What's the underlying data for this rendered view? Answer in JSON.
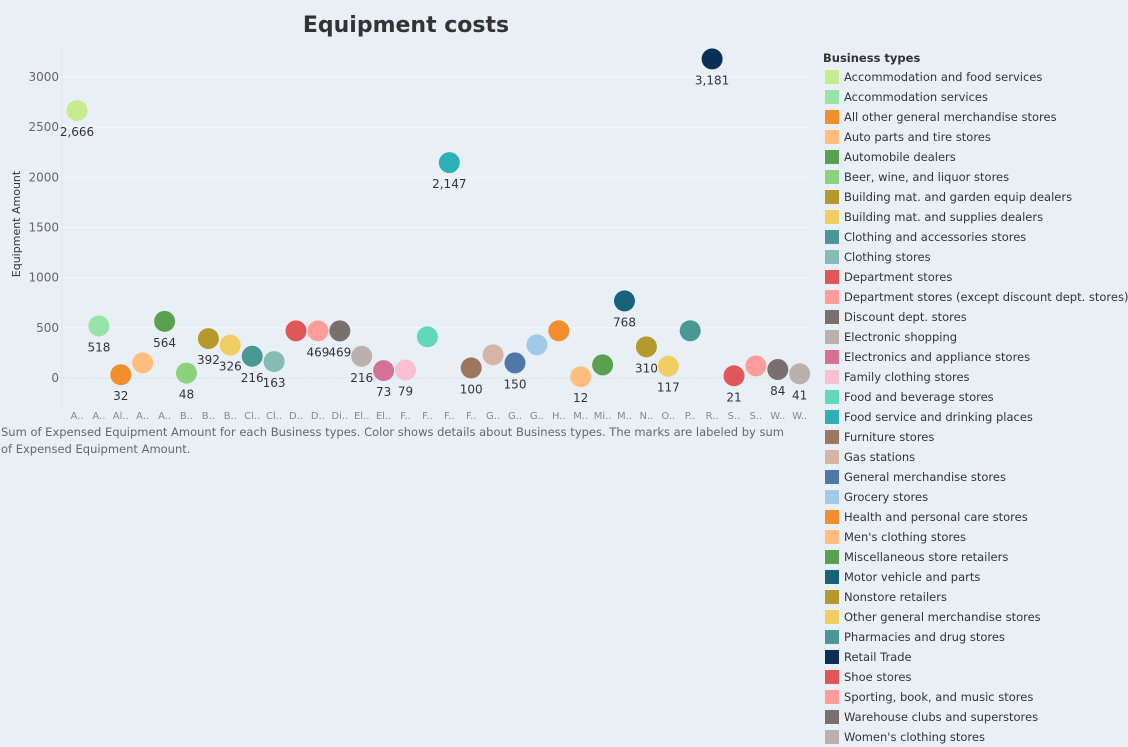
{
  "chart_data": {
    "type": "scatter",
    "title": "Equipment costs",
    "ylabel": "Equipment Amount",
    "xlabel": "",
    "ylim": [
      -300,
      3300
    ],
    "yticks": [
      0,
      500,
      1000,
      1500,
      2000,
      2500,
      3000
    ],
    "grid": true,
    "legend_title": "Business types",
    "legend_position": "right",
    "caption": "Sum of Expensed Equipment Amount for each Business types.  Color shows details about Business types.  The marks are labeled by sum of Expensed Equipment Amount.",
    "points": [
      {
        "category": "Accommodation and food services",
        "tick": "A..",
        "value": 2666,
        "label": "2,666",
        "color": "#c6ec8e"
      },
      {
        "category": "Accommodation services",
        "tick": "A..",
        "value": 518,
        "label": "518",
        "color": "#98e3a6"
      },
      {
        "category": "All other general merchandise stores",
        "tick": "Al..",
        "value": 32,
        "label": "32",
        "color": "#f28e2b"
      },
      {
        "category": "Auto parts and tire stores",
        "tick": "A..",
        "value": 150,
        "label": "",
        "color": "#ffbe7d"
      },
      {
        "category": "Automobile dealers",
        "tick": "A..",
        "value": 564,
        "label": "564",
        "color": "#59a14f"
      },
      {
        "category": "Beer, wine, and liquor stores",
        "tick": "B..",
        "value": 48,
        "label": "48",
        "color": "#8cd17d"
      },
      {
        "category": "Building mat. and garden equip dealers",
        "tick": "B..",
        "value": 392,
        "label": "392",
        "color": "#b6992d"
      },
      {
        "category": "Building mat. and supplies dealers",
        "tick": "B..",
        "value": 326,
        "label": "326",
        "color": "#f1ce63"
      },
      {
        "category": "Clothing and accessories stores",
        "tick": "Cl..",
        "value": 216,
        "label": "216",
        "color": "#499894"
      },
      {
        "category": "Clothing stores",
        "tick": "Cl..",
        "value": 163,
        "label": "163",
        "color": "#86bcb6"
      },
      {
        "category": "Department stores",
        "tick": "D..",
        "value": 469,
        "label": "",
        "color": "#e15759"
      },
      {
        "category": "Department stores (except discount dept. stores)",
        "tick": "D..",
        "value": 469,
        "label": "469",
        "color": "#ff9d9a"
      },
      {
        "category": "Discount dept. stores",
        "tick": "Di..",
        "value": 469,
        "label": "469",
        "color": "#79706e"
      },
      {
        "category": "Electronic shopping",
        "tick": "El..",
        "value": 216,
        "label": "216",
        "color": "#bab0ac"
      },
      {
        "category": "Electronics and appliance stores",
        "tick": "El..",
        "value": 73,
        "label": "73",
        "color": "#d37295"
      },
      {
        "category": "Family clothing stores",
        "tick": "F..",
        "value": 79,
        "label": "79",
        "color": "#fabfd2"
      },
      {
        "category": "Food and beverage stores",
        "tick": "F..",
        "value": 410,
        "label": "",
        "color": "#5fd9b9"
      },
      {
        "category": "Food service and drinking places",
        "tick": "F..",
        "value": 2147,
        "label": "2,147",
        "color": "#2bb0b6"
      },
      {
        "category": "Furniture stores",
        "tick": "F..",
        "value": 100,
        "label": "100",
        "color": "#9d7660"
      },
      {
        "category": "Gas stations",
        "tick": "G..",
        "value": 230,
        "label": "",
        "color": "#d7b5a6"
      },
      {
        "category": "General merchandise stores",
        "tick": "G..",
        "value": 150,
        "label": "150",
        "color": "#4e79a7"
      },
      {
        "category": "Grocery stores",
        "tick": "G..",
        "value": 330,
        "label": "",
        "color": "#a0cbe8"
      },
      {
        "category": "Health and personal care stores",
        "tick": "H..",
        "value": 470,
        "label": "",
        "color": "#f28e2b"
      },
      {
        "category": "Men's clothing stores",
        "tick": "M..",
        "value": 12,
        "label": "12",
        "color": "#ffbe7d"
      },
      {
        "category": "Miscellaneous store retailers",
        "tick": "Mi..",
        "value": 130,
        "label": "",
        "color": "#59a14f"
      },
      {
        "category": "Motor vehicle and parts",
        "tick": "M..",
        "value": 768,
        "label": "768",
        "color": "#17647a"
      },
      {
        "category": "Nonstore retailers",
        "tick": "N..",
        "value": 310,
        "label": "310",
        "color": "#b6992d"
      },
      {
        "category": "Other general merchandise stores",
        "tick": "O..",
        "value": 117,
        "label": "117",
        "color": "#f1ce63"
      },
      {
        "category": "Pharmacies and drug stores",
        "tick": "P..",
        "value": 470,
        "label": "",
        "color": "#499894"
      },
      {
        "category": "Retail Trade",
        "tick": "R..",
        "value": 3181,
        "label": "3,181",
        "color": "#0b2f55"
      },
      {
        "category": "Shoe stores",
        "tick": "S..",
        "value": 21,
        "label": "21",
        "color": "#e15759"
      },
      {
        "category": "Sporting, book, and  music stores",
        "tick": "S..",
        "value": 120,
        "label": "",
        "color": "#ff9d9a"
      },
      {
        "category": "Warehouse clubs and superstores",
        "tick": "W..",
        "value": 84,
        "label": "84",
        "color": "#79706e"
      },
      {
        "category": "Women's clothing stores",
        "tick": "W..",
        "value": 41,
        "label": "41",
        "color": "#bab0ac"
      }
    ]
  }
}
